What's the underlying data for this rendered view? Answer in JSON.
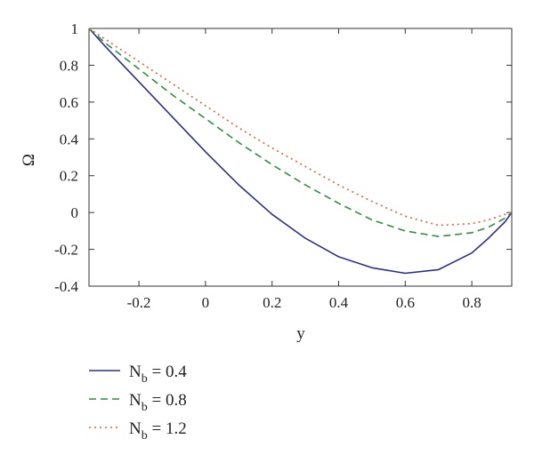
{
  "chart_data": {
    "type": "line",
    "xlabel": "y",
    "ylabel": "Ω",
    "xlim": [
      -0.35,
      0.92
    ],
    "ylim": [
      -0.4,
      1.0
    ],
    "xticks": [
      "-0.2",
      "0",
      "0.2",
      "0.4",
      "0.6",
      "0.8"
    ],
    "yticks": [
      "-0.4",
      "-0.2",
      "0",
      "0.2",
      "0.4",
      "0.6",
      "0.8",
      "1"
    ],
    "grid": false,
    "legend_position": "below-left",
    "series": [
      {
        "name": "N_b = 0.4",
        "label_base": "N",
        "label_sub": "b",
        "label_rest": " = 0.4",
        "color": "#2b2f8f",
        "style": "solid",
        "x": [
          -0.35,
          -0.3,
          -0.2,
          -0.1,
          0.0,
          0.1,
          0.2,
          0.3,
          0.4,
          0.5,
          0.6,
          0.7,
          0.8,
          0.85,
          0.9,
          0.92
        ],
        "y": [
          1.0,
          0.9,
          0.71,
          0.52,
          0.33,
          0.15,
          -0.01,
          -0.14,
          -0.24,
          -0.3,
          -0.33,
          -0.31,
          -0.22,
          -0.14,
          -0.05,
          0.0
        ]
      },
      {
        "name": "N_b = 0.8",
        "label_base": "N",
        "label_sub": "b",
        "label_rest": " = 0.8",
        "color": "#2f8f3f",
        "style": "dashed",
        "x": [
          -0.35,
          -0.3,
          -0.2,
          -0.1,
          0.0,
          0.1,
          0.2,
          0.3,
          0.4,
          0.5,
          0.6,
          0.7,
          0.8,
          0.85,
          0.9,
          0.92
        ],
        "y": [
          1.0,
          0.92,
          0.78,
          0.64,
          0.51,
          0.38,
          0.26,
          0.15,
          0.05,
          -0.04,
          -0.1,
          -0.13,
          -0.11,
          -0.08,
          -0.03,
          0.0
        ]
      },
      {
        "name": "N_b = 1.2",
        "label_base": "N",
        "label_sub": "b",
        "label_rest": " = 1.2",
        "color": "#e0603a",
        "style": "dotted",
        "x": [
          -0.35,
          -0.3,
          -0.2,
          -0.1,
          0.0,
          0.1,
          0.2,
          0.3,
          0.4,
          0.5,
          0.6,
          0.7,
          0.8,
          0.85,
          0.9,
          0.92
        ],
        "y": [
          1.0,
          0.94,
          0.82,
          0.7,
          0.58,
          0.46,
          0.35,
          0.25,
          0.15,
          0.06,
          -0.02,
          -0.07,
          -0.06,
          -0.04,
          -0.01,
          0.0
        ]
      }
    ]
  }
}
